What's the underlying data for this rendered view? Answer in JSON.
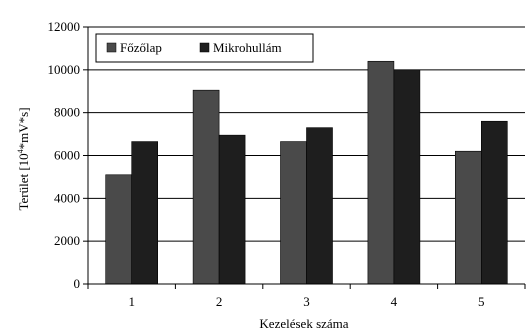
{
  "chart_data": {
    "type": "bar",
    "title": "",
    "xlabel": "Kezelések száma",
    "ylabel_main": "Terület [10",
    "ylabel_sup": "4",
    "ylabel_rest": "*mV*s]",
    "categories": [
      "1",
      "2",
      "3",
      "4",
      "5"
    ],
    "ylim": [
      0,
      12000
    ],
    "yticks": [
      "0",
      "2000",
      "4000",
      "6000",
      "8000",
      "10000",
      "12000"
    ],
    "grid": true,
    "legend_position": "top-left",
    "series": [
      {
        "name": "Főzőlap",
        "values": [
          5100,
          9050,
          6650,
          10400,
          6200
        ],
        "color": "#4a4a4a"
      },
      {
        "name": "Mikrohullám",
        "values": [
          6650,
          6950,
          7300,
          10000,
          7600
        ],
        "color": "#1e1e1e"
      }
    ]
  }
}
